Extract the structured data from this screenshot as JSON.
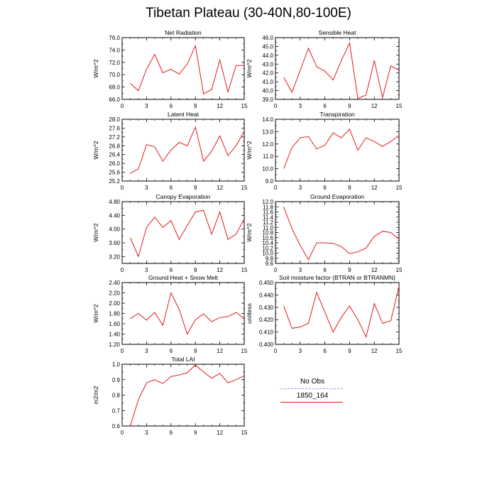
{
  "title": "Tibetan Plateau (30-40N,80-100E)",
  "legend": {
    "entries": [
      {
        "label": "No Obs",
        "color": "#9999ee",
        "dash": true
      },
      {
        "label": "1850_164",
        "color": "#e41a1c",
        "dash": false
      }
    ]
  },
  "chart_data": [
    {
      "type": "line",
      "title": "Net Radiation",
      "ylabel": "W/m^2",
      "xlim": [
        0,
        15
      ],
      "ylim": [
        66.0,
        76.0
      ],
      "yticks": [
        "66.0",
        "68.0",
        "70.0",
        "72.0",
        "74.0",
        "76.0"
      ],
      "yticks_values": [
        66,
        68,
        70,
        72,
        74,
        76
      ],
      "xticks": [
        "0",
        "3",
        "6",
        "9",
        "12",
        "15"
      ],
      "xticks_values": [
        0,
        3,
        6,
        9,
        12,
        15
      ],
      "ytick_side": "left",
      "series": [
        {
          "name": "1850_164",
          "x": [
            1,
            2,
            3,
            4,
            5,
            6,
            7,
            8,
            9,
            10,
            11,
            12,
            13,
            14,
            15
          ],
          "values": [
            68.6,
            67.4,
            70.9,
            73.3,
            70.3,
            70.9,
            70.1,
            71.7,
            74.7,
            66.9,
            67.6,
            72.4,
            67.2,
            71.5,
            71.5
          ]
        }
      ]
    },
    {
      "type": "line",
      "title": "Sensible Heat",
      "ylabel": "W/m^2",
      "xlim": [
        0,
        15
      ],
      "ylim": [
        39.0,
        46.0
      ],
      "yticks": [
        "39.0",
        "40.0",
        "41.0",
        "42.0",
        "43.0",
        "44.0",
        "45.0",
        "46.0"
      ],
      "yticks_values": [
        39,
        40,
        41,
        42,
        43,
        44,
        45,
        46
      ],
      "xticks": [
        "0",
        "3",
        "6",
        "9",
        "12",
        "15"
      ],
      "xticks_values": [
        0,
        3,
        6,
        9,
        12,
        15
      ],
      "series": [
        {
          "name": "1850_164",
          "x": [
            1,
            2,
            3,
            4,
            5,
            6,
            7,
            8,
            9,
            10,
            11,
            12,
            13,
            14,
            15
          ],
          "values": [
            41.5,
            39.8,
            42.3,
            44.8,
            42.7,
            42.2,
            41.2,
            43.4,
            45.4,
            39.1,
            39.5,
            43.4,
            39.2,
            42.8,
            42.3
          ]
        }
      ]
    },
    {
      "type": "line",
      "title": "Latent Heat",
      "ylabel": "W/m^2",
      "xlim": [
        0,
        15
      ],
      "ylim": [
        25.2,
        28.0
      ],
      "yticks": [
        "25.2",
        "25.6",
        "26.0",
        "26.4",
        "26.8",
        "27.2",
        "27.6",
        "28.0"
      ],
      "yticks_values": [
        25.2,
        25.6,
        26.0,
        26.4,
        26.8,
        27.2,
        27.6,
        28.0
      ],
      "xticks": [
        "0",
        "3",
        "6",
        "9",
        "12",
        "15"
      ],
      "xticks_values": [
        0,
        3,
        6,
        9,
        12,
        15
      ],
      "series": [
        {
          "name": "1850_164",
          "x": [
            1,
            2,
            3,
            4,
            5,
            6,
            7,
            8,
            9,
            10,
            11,
            12,
            13,
            14,
            15
          ],
          "values": [
            25.55,
            25.75,
            26.85,
            26.75,
            26.1,
            26.6,
            26.95,
            26.8,
            27.65,
            26.1,
            26.55,
            27.25,
            26.35,
            26.8,
            27.45
          ]
        }
      ]
    },
    {
      "type": "line",
      "title": "Transpiration",
      "ylabel": "W/m^2",
      "xlim": [
        0,
        15
      ],
      "ylim": [
        9.0,
        14.0
      ],
      "yticks": [
        "9.0",
        "10.0",
        "11.0",
        "12.0",
        "13.0",
        "14.0"
      ],
      "yticks_values": [
        9,
        10,
        11,
        12,
        13,
        14
      ],
      "xticks": [
        "0",
        "3",
        "6",
        "9",
        "12",
        "15"
      ],
      "xticks_values": [
        0,
        3,
        6,
        9,
        12,
        15
      ],
      "series": [
        {
          "name": "1850_164",
          "x": [
            1,
            2,
            3,
            4,
            5,
            6,
            7,
            8,
            9,
            10,
            11,
            12,
            13,
            14,
            15
          ],
          "values": [
            10.0,
            11.7,
            12.5,
            12.6,
            11.6,
            11.9,
            12.9,
            12.5,
            13.2,
            11.5,
            12.5,
            12.2,
            11.8,
            12.2,
            12.7
          ]
        }
      ]
    },
    {
      "type": "line",
      "title": "Canopy Evaporation",
      "ylabel": "W/m^2",
      "xlim": [
        0,
        15
      ],
      "ylim": [
        3.0,
        4.8
      ],
      "yticks": [
        "3.20",
        "3.60",
        "4.00",
        "4.40",
        "4.80"
      ],
      "yticks_values": [
        3.2,
        3.6,
        4.0,
        4.4,
        4.8
      ],
      "xticks": [
        "0",
        "3",
        "6",
        "9",
        "12",
        "15"
      ],
      "xticks_values": [
        0,
        3,
        6,
        9,
        12,
        15
      ],
      "series": [
        {
          "name": "1850_164",
          "x": [
            1,
            2,
            3,
            4,
            5,
            6,
            7,
            8,
            9,
            10,
            11,
            12,
            13,
            14,
            15
          ],
          "values": [
            3.75,
            3.2,
            4.05,
            4.35,
            4.05,
            4.25,
            3.7,
            4.1,
            4.5,
            4.55,
            3.85,
            4.5,
            3.7,
            3.85,
            4.3
          ]
        }
      ]
    },
    {
      "type": "line",
      "title": "Ground Evaporation",
      "ylabel": "W/m^2",
      "xlim": [
        0,
        15
      ],
      "ylim": [
        9.6,
        12.0
      ],
      "yticks": [
        "9.6",
        "9.8",
        "10.0",
        "10.2",
        "10.4",
        "10.6",
        "10.8",
        "11.0",
        "11.2",
        "11.4",
        "11.6",
        "11.8",
        "12.0"
      ],
      "yticks_values": [
        9.6,
        9.8,
        10.0,
        10.2,
        10.4,
        10.6,
        10.8,
        11.0,
        11.2,
        11.4,
        11.6,
        11.8,
        12.0
      ],
      "xticks": [
        "0",
        "3",
        "6",
        "9",
        "12",
        "15"
      ],
      "xticks_values": [
        0,
        3,
        6,
        9,
        12,
        15
      ],
      "series": [
        {
          "name": "1850_164",
          "x": [
            1,
            2,
            3,
            4,
            5,
            6,
            7,
            8,
            9,
            10,
            11,
            12,
            13,
            14,
            15
          ],
          "values": [
            11.8,
            10.95,
            10.3,
            9.75,
            10.4,
            10.4,
            10.38,
            10.25,
            9.98,
            10.05,
            10.2,
            10.65,
            10.85,
            10.8,
            10.55
          ]
        }
      ]
    },
    {
      "type": "line",
      "title": "Ground Heat + Snow Melt",
      "ylabel": "W/m^2",
      "xlim": [
        0,
        15
      ],
      "ylim": [
        1.2,
        2.4
      ],
      "yticks": [
        "1.20",
        "1.40",
        "1.60",
        "1.80",
        "2.00",
        "2.20",
        "2.40"
      ],
      "yticks_values": [
        1.2,
        1.4,
        1.6,
        1.8,
        2.0,
        2.2,
        2.4
      ],
      "xticks": [
        "0",
        "3",
        "6",
        "9",
        "12",
        "15"
      ],
      "xticks_values": [
        0,
        3,
        6,
        9,
        12,
        15
      ],
      "series": [
        {
          "name": "1850_164",
          "x": [
            1,
            2,
            3,
            4,
            5,
            6,
            7,
            8,
            9,
            10,
            11,
            12,
            13,
            14,
            15
          ],
          "values": [
            1.7,
            1.8,
            1.67,
            1.82,
            1.57,
            2.2,
            1.88,
            1.4,
            1.68,
            1.79,
            1.64,
            1.72,
            1.74,
            1.82,
            1.7
          ]
        }
      ]
    },
    {
      "type": "line",
      "title": "Soil moisture factor (BTRAN or BTRANMN)",
      "ylabel": "unitless",
      "xlim": [
        0,
        15
      ],
      "ylim": [
        0.4,
        0.45
      ],
      "yticks": [
        "0.400",
        "0.410",
        "0.420",
        "0.430",
        "0.440",
        "0.450"
      ],
      "yticks_values": [
        0.4,
        0.41,
        0.42,
        0.43,
        0.44,
        0.45
      ],
      "xticks": [
        "0",
        "3",
        "6",
        "9",
        "12",
        "15"
      ],
      "xticks_values": [
        0,
        3,
        6,
        9,
        12,
        15
      ],
      "series": [
        {
          "name": "1850_164",
          "x": [
            1,
            2,
            3,
            4,
            5,
            6,
            7,
            8,
            9,
            10,
            11,
            12,
            13,
            14,
            15
          ],
          "values": [
            0.431,
            0.413,
            0.414,
            0.417,
            0.442,
            0.426,
            0.41,
            0.422,
            0.431,
            0.42,
            0.406,
            0.433,
            0.417,
            0.419,
            0.447
          ]
        }
      ]
    },
    {
      "type": "line",
      "title": "Total LAI",
      "ylabel": "m2/m2",
      "xlim": [
        0,
        15
      ],
      "ylim": [
        0.6,
        1.0
      ],
      "yticks": [
        "0.6",
        "0.7",
        "0.8",
        "0.9",
        "1.0"
      ],
      "yticks_values": [
        0.6,
        0.7,
        0.8,
        0.9,
        1.0
      ],
      "xticks": [
        "0",
        "3",
        "6",
        "9",
        "12",
        "15"
      ],
      "xticks_values": [
        0,
        3,
        6,
        9,
        12,
        15
      ],
      "series": [
        {
          "name": "1850_164",
          "x": [
            1,
            2,
            3,
            4,
            5,
            6,
            7,
            8,
            9,
            10,
            11,
            12,
            13,
            14,
            15
          ],
          "values": [
            0.6,
            0.77,
            0.88,
            0.9,
            0.875,
            0.92,
            0.93,
            0.945,
            0.995,
            0.95,
            0.91,
            0.94,
            0.88,
            0.9,
            0.925
          ]
        }
      ]
    }
  ]
}
